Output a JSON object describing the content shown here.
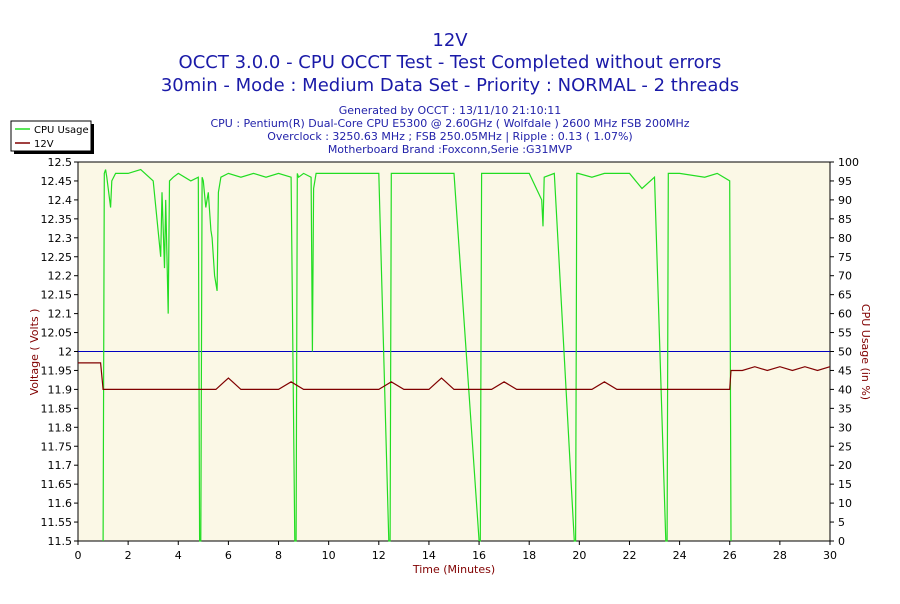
{
  "chart_data": {
    "type": "line",
    "title": "12V",
    "subtitle_lines": [
      "OCCT 3.0.0 - CPU OCCT Test - Test Completed without errors",
      "30min - Mode : Medium Data Set - Priority : NORMAL - 2 threads"
    ],
    "info_lines": [
      "Generated by OCCT : 13/11/10 21:10:11",
      "CPU : Pentium(R) Dual-Core CPU E5300 @ 2.60GHz ( Wolfdale ) 2600 MHz FSB 200MHz",
      "Overclock : 3250.63 MHz ; FSB 250.05MHz | Ripple : 0.13 ( 1.07%)",
      "Motherboard Brand :Foxconn,Serie :G31MVP"
    ],
    "xlabel": "Time (Minutes)",
    "ylabel_left": "Voltage ( Volts )",
    "ylabel_right": "CPU Usage (in %)",
    "xlim": [
      0,
      30
    ],
    "ylim_left": [
      11.5,
      12.5
    ],
    "ylim_right": [
      0,
      100
    ],
    "x_ticks": [
      "0",
      "2",
      "4",
      "6",
      "8",
      "10",
      "12",
      "14",
      "16",
      "18",
      "20",
      "22",
      "24",
      "26",
      "28",
      "30"
    ],
    "y_ticks_left": [
      "12.5",
      "12.45",
      "12.4",
      "12.35",
      "12.3",
      "12.25",
      "12.2",
      "12.15",
      "12.1",
      "12.05",
      "12",
      "11.95",
      "11.9",
      "11.85",
      "11.8",
      "11.75",
      "11.7",
      "11.65",
      "11.6",
      "11.55",
      "11.5"
    ],
    "y_ticks_right": [
      "100",
      "95",
      "90",
      "85",
      "80",
      "75",
      "70",
      "65",
      "60",
      "55",
      "50",
      "45",
      "40",
      "35",
      "30",
      "25",
      "20",
      "15",
      "10",
      "5",
      "0"
    ],
    "reference_line": {
      "axis": "left",
      "value": 12.0,
      "color": "#0000c0"
    },
    "legend": {
      "placement": "top-left",
      "entries": [
        "CPU Usage",
        "12V"
      ]
    },
    "grid": false,
    "colors": {
      "cpu": "#22dd22",
      "voltage": "#800000",
      "title": "#1a1aa8",
      "plot_background": "#fbf8e6",
      "axis_text": "#800000"
    },
    "series": [
      {
        "name": "CPU Usage",
        "axis": "right",
        "x": [
          0,
          0.9,
          1.0,
          1.05,
          1.1,
          1.15,
          1.3,
          1.35,
          1.5,
          2.0,
          2.5,
          3.0,
          3.3,
          3.35,
          3.45,
          3.5,
          3.6,
          3.65,
          3.8,
          4.0,
          4.5,
          4.8,
          4.85,
          4.9,
          4.95,
          5.0,
          5.1,
          5.2,
          5.3,
          5.35,
          5.45,
          5.55,
          5.6,
          5.7,
          6.0,
          6.5,
          7.0,
          7.5,
          8.0,
          8.5,
          8.65,
          8.7,
          8.75,
          8.8,
          9.0,
          9.3,
          9.35,
          9.4,
          9.5,
          10.0,
          11.0,
          12.0,
          12.4,
          12.45,
          12.5,
          12.55,
          13.0,
          14.0,
          15.0,
          16.0,
          16.05,
          16.1,
          16.15,
          17.0,
          18.0,
          18.5,
          18.55,
          18.6,
          19.0,
          19.8,
          19.85,
          19.9,
          19.95,
          20.5,
          21.0,
          22.0,
          22.5,
          23.0,
          23.45,
          23.5,
          23.55,
          23.6,
          24.0,
          25.0,
          25.5,
          26.0,
          26.05,
          26.1
        ],
        "values": [
          null,
          null,
          0,
          97,
          98,
          96,
          88,
          95,
          97,
          97,
          98,
          95,
          75,
          92,
          72,
          90,
          60,
          95,
          96,
          97,
          95,
          96,
          0,
          0,
          96,
          95,
          88,
          92,
          82,
          80,
          70,
          66,
          92,
          96,
          97,
          96,
          97,
          96,
          97,
          96,
          0,
          0,
          97,
          96,
          97,
          96,
          50,
          93,
          97,
          97,
          97,
          97,
          0,
          0,
          97,
          97,
          97,
          97,
          97,
          0,
          0,
          97,
          97,
          97,
          97,
          90,
          83,
          96,
          97,
          0,
          0,
          97,
          97,
          96,
          97,
          97,
          93,
          96,
          0,
          0,
          97,
          97,
          97,
          96,
          97,
          95,
          0,
          null
        ]
      },
      {
        "name": "12V",
        "axis": "left",
        "x": [
          0,
          0.9,
          1.0,
          1.5,
          2.0,
          2.5,
          3.0,
          3.5,
          4.0,
          4.5,
          5.0,
          5.5,
          6.0,
          6.5,
          7.0,
          7.5,
          8.0,
          8.5,
          9.0,
          9.5,
          10.0,
          10.5,
          11.0,
          11.5,
          12.0,
          12.5,
          13.0,
          13.5,
          14.0,
          14.5,
          15.0,
          15.5,
          16.0,
          16.5,
          17.0,
          17.5,
          18.0,
          18.5,
          19.0,
          19.5,
          20.0,
          20.5,
          21.0,
          21.5,
          22.0,
          22.5,
          23.0,
          23.5,
          24.0,
          24.5,
          25.0,
          25.5,
          26.0,
          26.05,
          26.5,
          27.0,
          27.5,
          28.0,
          28.5,
          29.0,
          29.5,
          30.0
        ],
        "values": [
          11.97,
          11.97,
          11.9,
          11.9,
          11.9,
          11.9,
          11.9,
          11.9,
          11.9,
          11.9,
          11.9,
          11.9,
          11.93,
          11.9,
          11.9,
          11.9,
          11.9,
          11.92,
          11.9,
          11.9,
          11.9,
          11.9,
          11.9,
          11.9,
          11.9,
          11.92,
          11.9,
          11.9,
          11.9,
          11.93,
          11.9,
          11.9,
          11.9,
          11.9,
          11.92,
          11.9,
          11.9,
          11.9,
          11.9,
          11.9,
          11.9,
          11.9,
          11.92,
          11.9,
          11.9,
          11.9,
          11.9,
          11.9,
          11.9,
          11.9,
          11.9,
          11.9,
          11.9,
          11.95,
          11.95,
          11.96,
          11.95,
          11.96,
          11.95,
          11.96,
          11.95,
          11.96
        ]
      }
    ]
  }
}
